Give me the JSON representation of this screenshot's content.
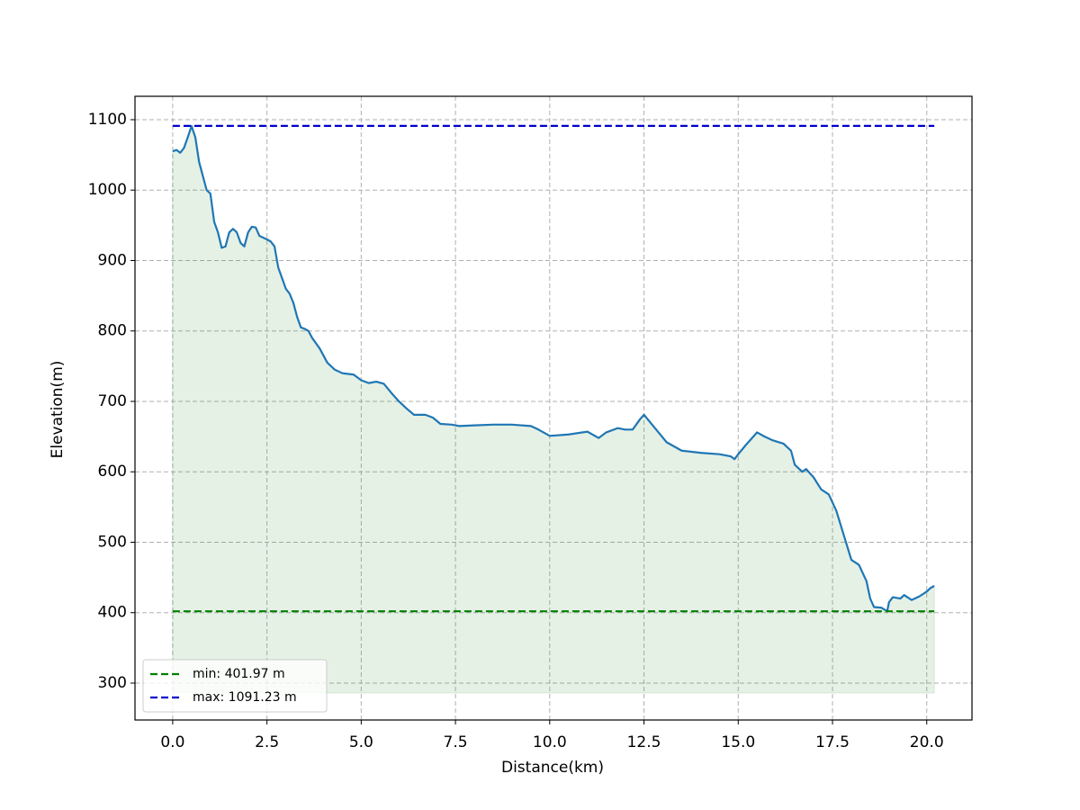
{
  "chart_data": {
    "type": "line",
    "x_label": "Distance(km)",
    "y_label": "Elevation(m)",
    "xlim": [
      -1.0,
      21.2
    ],
    "ylim": [
      247.6,
      1133.2
    ],
    "xticks": [
      {
        "value": 0,
        "label": "0.0"
      },
      {
        "value": 2.5,
        "label": "2.5"
      },
      {
        "value": 5,
        "label": "5.0"
      },
      {
        "value": 7.5,
        "label": "7.5"
      },
      {
        "value": 10,
        "label": "10.0"
      },
      {
        "value": 12.5,
        "label": "12.5"
      },
      {
        "value": 15,
        "label": "15.0"
      },
      {
        "value": 17.5,
        "label": "17.5"
      },
      {
        "value": 20,
        "label": "20.0"
      }
    ],
    "yticks": [
      300,
      400,
      500,
      600,
      700,
      800,
      900,
      1000,
      1100
    ],
    "grid": true,
    "legend": "lower left",
    "fill_color": "#2e8b2e",
    "fill_base": 286,
    "x": [
      0.0,
      0.1,
      0.2,
      0.3,
      0.4,
      0.5,
      0.6,
      0.7,
      0.8,
      0.9,
      1.0,
      1.1,
      1.2,
      1.3,
      1.4,
      1.5,
      1.6,
      1.7,
      1.8,
      1.9,
      2.0,
      2.1,
      2.2,
      2.3,
      2.5,
      2.6,
      2.7,
      2.8,
      3.0,
      3.1,
      3.2,
      3.3,
      3.4,
      3.5,
      3.6,
      3.7,
      3.9,
      4.1,
      4.3,
      4.5,
      4.8,
      5.0,
      5.2,
      5.4,
      5.6,
      5.8,
      6.0,
      6.2,
      6.4,
      6.7,
      6.9,
      7.1,
      7.4,
      7.6,
      8.0,
      8.5,
      9.0,
      9.5,
      9.7,
      10.0,
      10.5,
      11.0,
      11.3,
      11.5,
      11.8,
      12.0,
      12.2,
      12.4,
      12.5,
      12.7,
      12.9,
      13.1,
      13.5,
      14.0,
      14.5,
      14.8,
      14.9,
      15.0,
      15.2,
      15.4,
      15.5,
      15.7,
      15.9,
      16.2,
      16.4,
      16.5,
      16.7,
      16.8,
      17.0,
      17.2,
      17.4,
      17.6,
      17.8,
      18.0,
      18.2,
      18.4,
      18.5,
      18.6,
      18.8,
      18.95,
      19.0,
      19.1,
      19.3,
      19.4,
      19.6,
      19.8,
      20.0,
      20.1,
      20.2
    ],
    "series": [
      {
        "color": "#1f77b4",
        "values": [
          1055,
          1057,
          1053,
          1060,
          1075,
          1091,
          1075,
          1040,
          1020,
          1000,
          995,
          955,
          940,
          918,
          920,
          940,
          945,
          940,
          925,
          920,
          940,
          948,
          947,
          935,
          930,
          927,
          920,
          890,
          860,
          853,
          840,
          820,
          805,
          803,
          800,
          790,
          775,
          755,
          745,
          740,
          738,
          730,
          726,
          728,
          725,
          712,
          700,
          690,
          681,
          681,
          677,
          668,
          667,
          665,
          666,
          667,
          667,
          665,
          660,
          651,
          653,
          657,
          648,
          656,
          662,
          660,
          660,
          675,
          681,
          668,
          655,
          642,
          630,
          627,
          625,
          622,
          618,
          625,
          638,
          650,
          656,
          650,
          645,
          640,
          630,
          610,
          600,
          604,
          592,
          575,
          568,
          545,
          510,
          475,
          468,
          445,
          420,
          408,
          407,
          402,
          415,
          422,
          420,
          425,
          418,
          423,
          430,
          435,
          438
        ]
      }
    ],
    "hlines": [
      {
        "name": "min: 401.97 m",
        "value": 401.97,
        "color": "#008000",
        "x": [
          0,
          20.2
        ]
      },
      {
        "name": "max: 1091.23 m",
        "value": 1091.23,
        "color": "#0000cc",
        "x": [
          0,
          20.2
        ]
      }
    ]
  }
}
